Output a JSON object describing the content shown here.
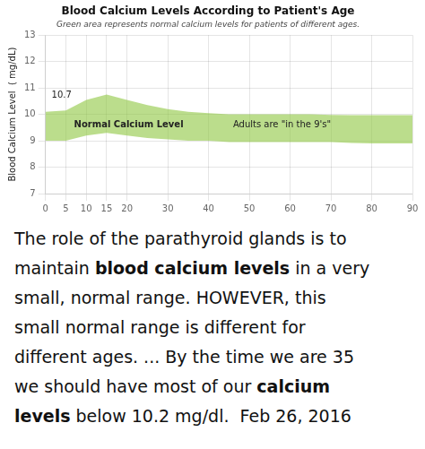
{
  "chart_data": {
    "type": "range_area",
    "title": "Blood Calcium Levels According to Patient's Age",
    "subtitle": "Green area represents normal calcium levels for patients of different ages.",
    "ylabel": "Blood Calcium Level  ( mg/dL)",
    "x": [
      0,
      5,
      10,
      15,
      20,
      25,
      30,
      35,
      40,
      45,
      50,
      55,
      60,
      65,
      70,
      75,
      80,
      85,
      90
    ],
    "upper": [
      10.1,
      10.15,
      10.55,
      10.75,
      10.55,
      10.35,
      10.2,
      10.1,
      10.05,
      10.0,
      10.0,
      10.0,
      10.0,
      10.0,
      9.98,
      9.97,
      9.97,
      9.97,
      9.97
    ],
    "lower": [
      9.0,
      9.0,
      9.2,
      9.3,
      9.2,
      9.1,
      9.05,
      9.0,
      9.0,
      8.95,
      8.95,
      8.95,
      8.95,
      8.95,
      8.95,
      8.92,
      8.9,
      8.9,
      8.9
    ],
    "color": "#8dc63f",
    "xlim": [
      0,
      90
    ],
    "xticks": [
      0,
      5,
      10,
      15,
      20,
      30,
      40,
      50,
      60,
      70,
      80,
      90
    ],
    "ylim": [
      7,
      13
    ],
    "yticks": [
      7,
      8,
      9,
      10,
      11,
      12,
      13
    ],
    "grid": true,
    "annotations": [
      {
        "text": "10.7",
        "x": 1.5,
        "y": 10.72,
        "bold": false
      },
      {
        "text": "Normal Calcium Level",
        "x": 7,
        "y": 9.6,
        "bold": true
      },
      {
        "text": "Adults are \"in the 9's\"",
        "x": 46,
        "y": 9.6,
        "bold": false
      }
    ],
    "paragraph": [
      [
        {
          "text": "The role of the parathyroid glands is to",
          "bold": false
        }
      ],
      [
        {
          "text": "maintain ",
          "bold": false
        },
        {
          "text": "blood calcium levels",
          "bold": true
        },
        {
          "text": " in a very",
          "bold": false
        }
      ],
      [
        {
          "text": "small, normal range. HOWEVER, this",
          "bold": false
        }
      ],
      [
        {
          "text": "small normal range is different for",
          "bold": false
        }
      ],
      [
        {
          "text": "different ages. ... By the time we are 35",
          "bold": false
        }
      ],
      [
        {
          "text": "we should have most of our ",
          "bold": false
        },
        {
          "text": "calcium",
          "bold": true
        }
      ],
      [
        {
          "text": "levels",
          "bold": true
        },
        {
          "text": " below 10.2 mg/dl.",
          "bold": false
        },
        {
          "text": "  Feb 26, 2016",
          "bold": false
        }
      ]
    ]
  }
}
